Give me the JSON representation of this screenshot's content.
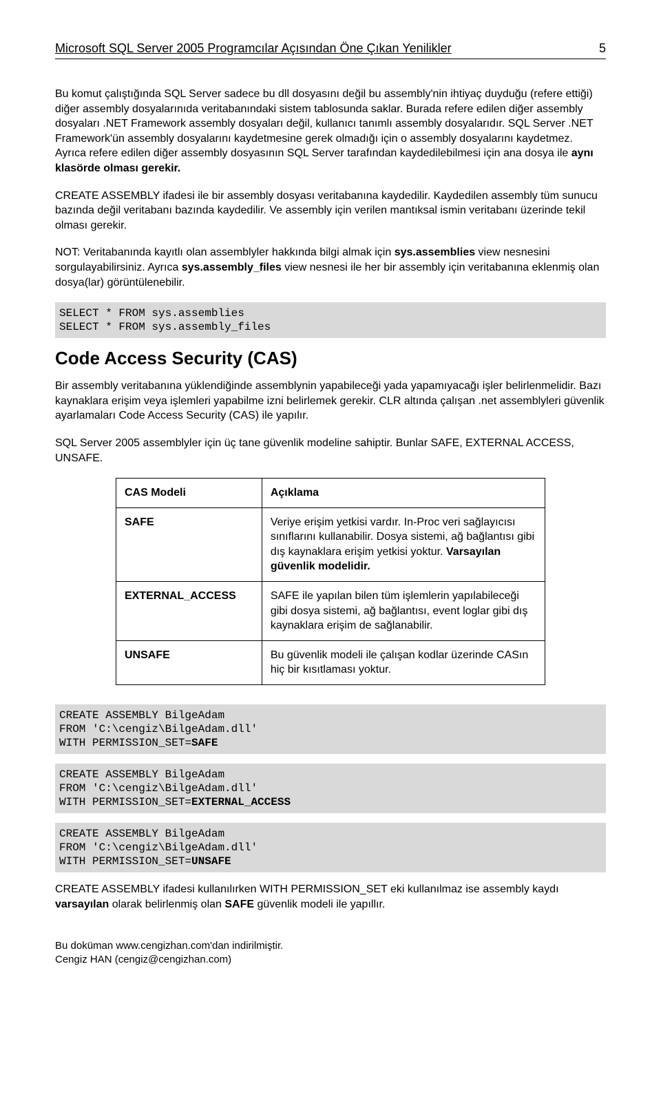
{
  "header": {
    "title": "Microsoft SQL Server 2005 Programcılar Açısından Öne Çıkan Yenilikler",
    "page_number": "5"
  },
  "p1": "Bu komut çalıştığında SQL Server sadece bu dll dosyasını değil bu assembly'nin ihtiyaç duyduğu (refere ettiği) diğer assembly dosyalarınıda veritabanındaki sistem tablosunda saklar. Burada refere edilen diğer assembly dosyaları .NET Framework assembly dosyaları değil, kullanıcı tanımlı assembly dosyalarıdır. SQL Server .NET Framework'ün assembly dosyalarını kaydetmesine gerek olmadığı için o assembly dosyalarını kaydetmez. Ayrıca refere edilen diğer assembly dosyasının SQL Server tarafından kaydedilebilmesi için ana dosya ile ",
  "p1_bold": "aynı klasörde olması gerekir.",
  "p2": "CREATE ASSEMBLY ifadesi ile bir assembly dosyası veritabanına kaydedilir. Kaydedilen assembly tüm sunucu bazında değil veritabanı bazında kaydedilir. Ve assembly için verilen mantıksal ismin veritabanı üzerinde tekil olması gerekir.",
  "p3_a": "NOT: Veritabanında kayıtlı olan assemblyler hakkında bilgi almak için ",
  "p3_b": "sys.assemblies",
  "p3_c": " view nesnesini sorgulayabilirsiniz. Ayrıca ",
  "p3_d": "sys.assembly_files",
  "p3_e": " view nesnesi ile her bir assembly için veritabanına eklenmiş olan dosya(lar) görüntülenebilir.",
  "code1": "SELECT * FROM sys.assemblies\nSELECT * FROM sys.assembly_files",
  "section_title": "Code Access Security (CAS)",
  "p4": "Bir assembly veritabanına yüklendiğinde assemblynin yapabileceği yada yapamıyacağı işler belirlenmelidir. Bazı kaynaklara erişim veya işlemleri yapabilme izni belirlemek gerekir. CLR altında çalışan .net assemblyleri güvenlik ayarlamaları Code Access Security (CAS) ile yapılır.",
  "p5": "SQL Server 2005 assemblyler için üç tane güvenlik modeline sahiptir. Bunlar SAFE, EXTERNAL ACCESS, UNSAFE.",
  "table": {
    "h1": "CAS Modeli",
    "h2": "Açıklama",
    "r1c1": "SAFE",
    "r1c2_a": "Veriye erişim yetkisi vardır. In-Proc veri sağlayıcısı sınıflarını kullanabilir. Dosya sistemi, ağ bağlantısı gibi dış kaynaklara erişim yetkisi yoktur. ",
    "r1c2_b": "Varsayılan güvenlik modelidir.",
    "r2c1": "EXTERNAL_ACCESS",
    "r2c2": "SAFE ile yapılan bilen tüm işlemlerin yapılabileceği gibi dosya sistemi, ağ bağlantısı, event loglar gibi dış kaynaklara erişim de sağlanabilir.",
    "r3c1": "UNSAFE",
    "r3c2": "Bu güvenlik modeli ile çalışan kodlar üzerinde CASın hiç bir kısıtlaması yoktur."
  },
  "code2_a": "CREATE ASSEMBLY BilgeAdam\nFROM 'C:\\cengiz\\BilgeAdam.dll'\nWITH PERMISSION_SET=",
  "code2_b": "SAFE",
  "code3_a": "CREATE ASSEMBLY BilgeAdam\nFROM 'C:\\cengiz\\BilgeAdam.dll'\nWITH PERMISSION_SET=",
  "code3_b": "EXTERNAL_ACCESS",
  "code4_a": "CREATE ASSEMBLY BilgeAdam\nFROM 'C:\\cengiz\\BilgeAdam.dll'\nWITH PERMISSION_SET=",
  "code4_b": "UNSAFE",
  "p6_a": "CREATE ASSEMBLY ifadesi kullanılırken WITH PERMISSION_SET eki kullanılmaz ise assembly kaydı ",
  "p6_b": "varsayılan",
  "p6_c": " olarak belirlenmiş olan ",
  "p6_d": "SAFE",
  "p6_e": " güvenlik modeli ile yapıllır.",
  "footer_a": "Bu doküman www.cengizhan.com'dan indirilmiştir.",
  "footer_b": "Cengiz HAN (cengiz@cengizhan.com)"
}
